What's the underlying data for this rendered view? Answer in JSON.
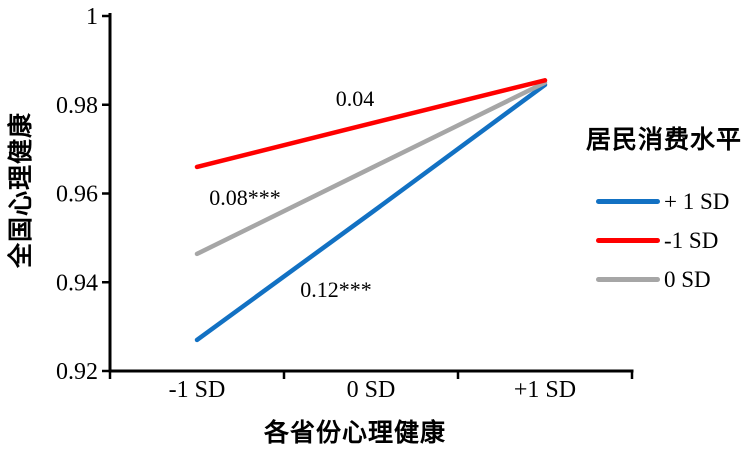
{
  "chart_data": {
    "type": "line",
    "title": "",
    "xlabel": "各省份心理健康",
    "ylabel": "全国心理健康",
    "ylim": [
      0.92,
      1.0
    ],
    "y_tick_labels": [
      "1",
      "0.98",
      "0.96",
      "0.94",
      "0.92"
    ],
    "y_tick_values": [
      1.0,
      0.98,
      0.96,
      0.94,
      0.92
    ],
    "categories": [
      "-1 SD",
      "0 SD",
      "+1 SD"
    ],
    "grid": false,
    "series": [
      {
        "name": "+ 1 SD",
        "color": "#1271C3",
        "values": [
          0.927,
          0.9556,
          0.9845
        ]
      },
      {
        "name": "-1 SD",
        "color": "#FF0000",
        "values": [
          0.966,
          0.9758,
          0.9855
        ]
      },
      {
        "name": "0 SD",
        "color": "#A6A6A6",
        "values": [
          0.9464,
          0.9657,
          0.985
        ]
      }
    ],
    "annotations": [
      {
        "text": "0.04",
        "series": "-1 SD"
      },
      {
        "text": "0.08***",
        "series": "0 SD"
      },
      {
        "text": "0.12***",
        "series": "+ 1 SD"
      }
    ],
    "legend": {
      "title": "居民消费水平",
      "position": "right",
      "items": [
        {
          "label": "+ 1 SD"
        },
        {
          "label": "-1 SD"
        },
        {
          "label": "0 SD"
        }
      ]
    },
    "colors": {
      "axis": "#000000",
      "text": "#000000",
      "background": "#FFFFFF"
    }
  }
}
